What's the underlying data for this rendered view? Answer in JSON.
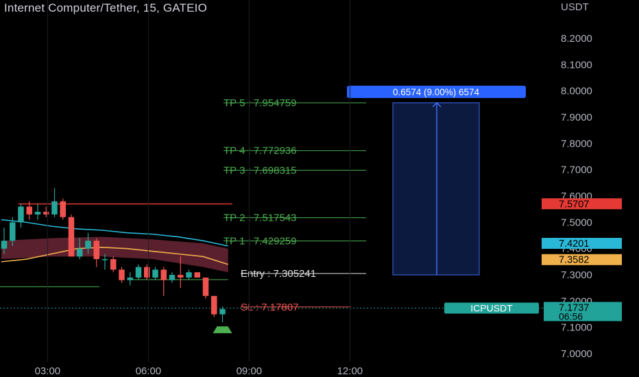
{
  "header": {
    "title": "Internet Computer/Tether, 15, GATEIO",
    "currency": "USDT"
  },
  "colors": {
    "background": "#000000",
    "up": "#26a69a",
    "down": "#ef5350",
    "ema_fast": "#f0b04c",
    "ema_slow": "#2ab8d8",
    "band": "#7a2b3c",
    "target_label": "#4caf50",
    "projection_fill": "#0d1a40",
    "projection_line": "#3d6cf0",
    "projection_badge": "#2962ff",
    "resistance": "#e53935",
    "support": "#43a047",
    "last_price": "#22a39a"
  },
  "chart_data": {
    "type": "candlestick",
    "symbol": "ICPUSDT",
    "ylim": [
      6.97,
      8.25
    ],
    "y_ticks": [
      {
        "value": 8.2,
        "label": "8.2000"
      },
      {
        "value": 8.1,
        "label": "8.1000"
      },
      {
        "value": 8.0,
        "label": "8.0000"
      },
      {
        "value": 7.9,
        "label": "7.9000"
      },
      {
        "value": 7.8,
        "label": "7.8000"
      },
      {
        "value": 7.7,
        "label": "7.7000"
      },
      {
        "value": 7.6,
        "label": "7.6000"
      },
      {
        "value": 7.5,
        "label": "7.5000"
      },
      {
        "value": 7.4,
        "label": "7.4000"
      },
      {
        "value": 7.3,
        "label": "7.3000"
      },
      {
        "value": 7.2,
        "label": "7.2000"
      },
      {
        "value": 7.1,
        "label": "7.1000"
      },
      {
        "value": 7.0,
        "label": "7.0000"
      }
    ],
    "x_ticks": [
      {
        "index": 5.5,
        "label": "03:00"
      },
      {
        "index": 17.5,
        "label": "06:00"
      },
      {
        "index": 29.5,
        "label": "09:00"
      },
      {
        "index": 41.5,
        "label": "12:00"
      }
    ],
    "candles": [
      {
        "o": 7.4,
        "h": 7.48,
        "l": 7.38,
        "c": 7.43
      },
      {
        "o": 7.43,
        "h": 7.52,
        "l": 7.41,
        "c": 7.5
      },
      {
        "o": 7.5,
        "h": 7.57,
        "l": 7.48,
        "c": 7.56
      },
      {
        "o": 7.56,
        "h": 7.58,
        "l": 7.51,
        "c": 7.53
      },
      {
        "o": 7.53,
        "h": 7.57,
        "l": 7.51,
        "c": 7.54
      },
      {
        "o": 7.54,
        "h": 7.56,
        "l": 7.52,
        "c": 7.53
      },
      {
        "o": 7.53,
        "h": 7.63,
        "l": 7.52,
        "c": 7.58
      },
      {
        "o": 7.58,
        "h": 7.59,
        "l": 7.51,
        "c": 7.52
      },
      {
        "o": 7.52,
        "h": 7.53,
        "l": 7.37,
        "c": 7.37
      },
      {
        "o": 7.37,
        "h": 7.44,
        "l": 7.36,
        "c": 7.4
      },
      {
        "o": 7.4,
        "h": 7.46,
        "l": 7.38,
        "c": 7.43
      },
      {
        "o": 7.43,
        "h": 7.44,
        "l": 7.33,
        "c": 7.36
      },
      {
        "o": 7.36,
        "h": 7.38,
        "l": 7.32,
        "c": 7.36
      },
      {
        "o": 7.36,
        "h": 7.37,
        "l": 7.31,
        "c": 7.32
      },
      {
        "o": 7.32,
        "h": 7.33,
        "l": 7.27,
        "c": 7.28
      },
      {
        "o": 7.28,
        "h": 7.31,
        "l": 7.26,
        "c": 7.29
      },
      {
        "o": 7.29,
        "h": 7.34,
        "l": 7.28,
        "c": 7.33
      },
      {
        "o": 7.33,
        "h": 7.34,
        "l": 7.28,
        "c": 7.29
      },
      {
        "o": 7.29,
        "h": 7.33,
        "l": 7.28,
        "c": 7.32
      },
      {
        "o": 7.32,
        "h": 7.33,
        "l": 7.22,
        "c": 7.28
      },
      {
        "o": 7.28,
        "h": 7.31,
        "l": 7.27,
        "c": 7.3
      },
      {
        "o": 7.3,
        "h": 7.37,
        "l": 7.25,
        "c": 7.29
      },
      {
        "o": 7.29,
        "h": 7.32,
        "l": 7.28,
        "c": 7.31
      },
      {
        "o": 7.31,
        "h": 7.31,
        "l": 7.29,
        "c": 7.29
      },
      {
        "o": 7.29,
        "h": 7.29,
        "l": 7.21,
        "c": 7.22
      },
      {
        "o": 7.22,
        "h": 7.22,
        "l": 7.14,
        "c": 7.15
      },
      {
        "o": 7.15,
        "h": 7.18,
        "l": 7.12,
        "c": 7.17
      }
    ],
    "ema_fast": [
      [
        0,
        7.35
      ],
      [
        3,
        7.36
      ],
      [
        6,
        7.38
      ],
      [
        9,
        7.4
      ],
      [
        12,
        7.405
      ],
      [
        15,
        7.4
      ],
      [
        18,
        7.39
      ],
      [
        21,
        7.38
      ],
      [
        24,
        7.37
      ],
      [
        27,
        7.34
      ]
    ],
    "ema_slow": [
      [
        0,
        7.51
      ],
      [
        3,
        7.5
      ],
      [
        6,
        7.485
      ],
      [
        9,
        7.475
      ],
      [
        12,
        7.47
      ],
      [
        15,
        7.46
      ],
      [
        18,
        7.455
      ],
      [
        21,
        7.445
      ],
      [
        24,
        7.43
      ],
      [
        27,
        7.41
      ]
    ],
    "band": {
      "start": 0,
      "end": 27,
      "upper": [
        [
          0,
          7.43
        ],
        [
          6,
          7.44
        ],
        [
          12,
          7.445
        ],
        [
          18,
          7.435
        ],
        [
          24,
          7.42
        ],
        [
          27,
          7.4
        ]
      ],
      "lower": [
        [
          0,
          7.36
        ],
        [
          6,
          7.37
        ],
        [
          12,
          7.37
        ],
        [
          18,
          7.36
        ],
        [
          24,
          7.33
        ],
        [
          27,
          7.31
        ]
      ]
    },
    "resistance_line": {
      "value": 7.57,
      "from": 2,
      "to": 27
    },
    "support_line": {
      "value": 7.255,
      "from": 0,
      "to": 11
    },
    "target_levels": [
      {
        "label": "TP 5 : 7.954759",
        "value": 7.954759
      },
      {
        "label": "TP 4 : 7.772936",
        "value": 7.772936
      },
      {
        "label": "TP 3 : 7.698315",
        "value": 7.698315
      },
      {
        "label": "TP 2 : 7.517543",
        "value": 7.517543
      },
      {
        "label": "TP 1 : 7.429259",
        "value": 7.429259
      }
    ],
    "entry": {
      "label": "Entry : 7.305241",
      "value": 7.305241
    },
    "stop_loss": {
      "label": "SL : 7.17807",
      "value": 7.17807
    },
    "projection": {
      "from_index": 34,
      "to_index": 39,
      "low": 7.3,
      "high": 7.955,
      "label": "0.6574 (9.00%) 6574"
    },
    "price_tags": [
      {
        "text": "7.5707",
        "value": 7.5707,
        "color": "#e53935"
      },
      {
        "text": "7.4201",
        "value": 7.4201,
        "color": "#2ab8d8"
      },
      {
        "text": "7.3582",
        "value": 7.3582,
        "color": "#f0b04c"
      }
    ],
    "last_price": {
      "symbol": "ICPUSDT",
      "value": 7.1737,
      "text": "7.1737",
      "countdown": "06:56"
    }
  }
}
